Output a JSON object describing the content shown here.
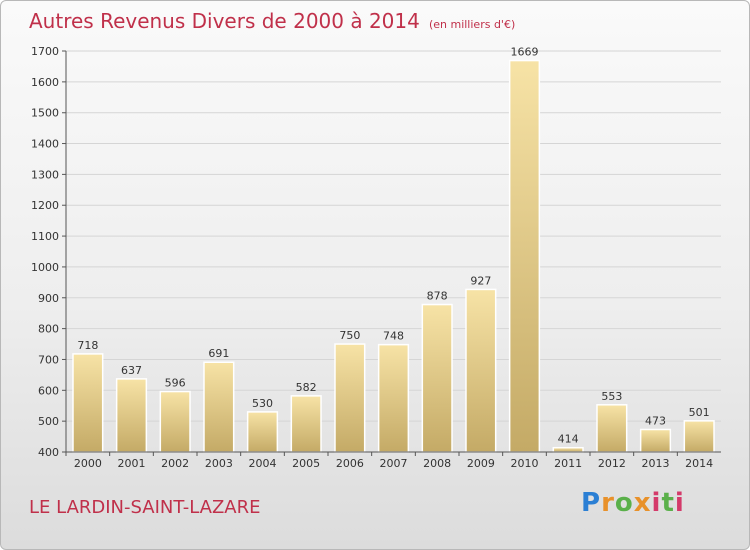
{
  "chart_data": {
    "type": "bar",
    "title": "Autres Revenus Divers de 2000 à 2014",
    "subtitle": "(en milliers d'€)",
    "categories": [
      "2000",
      "2001",
      "2002",
      "2003",
      "2004",
      "2005",
      "2006",
      "2007",
      "2008",
      "2009",
      "2010",
      "2011",
      "2012",
      "2013",
      "2014"
    ],
    "values": [
      718,
      637,
      596,
      691,
      530,
      582,
      750,
      748,
      878,
      927,
      1669,
      414,
      553,
      473,
      501
    ],
    "ylim": [
      400,
      1700
    ],
    "yticks": [
      400,
      500,
      600,
      700,
      800,
      900,
      1000,
      1100,
      1200,
      1300,
      1400,
      1500,
      1600,
      1700
    ],
    "grid": true,
    "colors": {
      "bar_light": "#f7e3a6",
      "bar_dark": "#c4aa66",
      "title": "#c0304a",
      "grid": "#d5d5d5"
    }
  },
  "footer": {
    "place": "LE LARDIN-SAINT-LAZARE",
    "logo": "Proxiti"
  }
}
